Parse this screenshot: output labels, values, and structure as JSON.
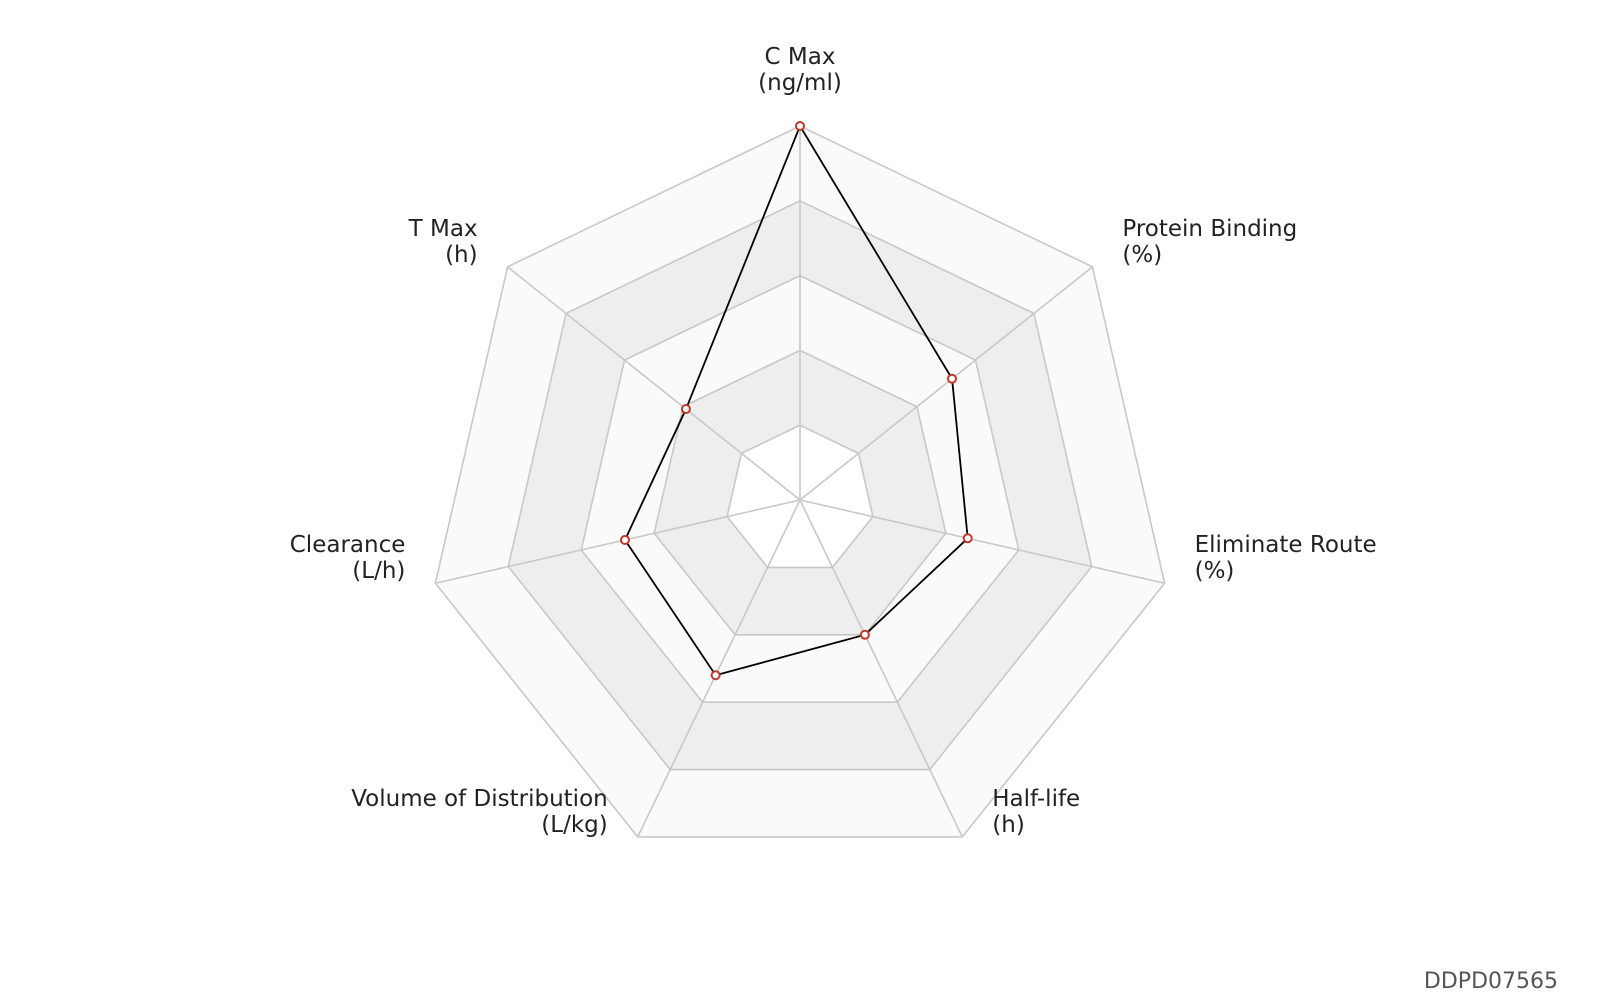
{
  "chart_data": {
    "type": "radar",
    "axes": [
      {
        "name": "C Max",
        "unit": "(ng/ml)"
      },
      {
        "name": "Protein Binding",
        "unit": "(%)"
      },
      {
        "name": "Eliminate Route",
        "unit": "(%)"
      },
      {
        "name": "Half-life",
        "unit": "(h)"
      },
      {
        "name": "Volume of Distribution",
        "unit": "(L/kg)"
      },
      {
        "name": "Clearance",
        "unit": "(L/h)"
      },
      {
        "name": "T Max",
        "unit": "(h)"
      }
    ],
    "series": [
      {
        "values": [
          1.0,
          0.52,
          0.46,
          0.4,
          0.52,
          0.48,
          0.39
        ]
      }
    ],
    "levels": 5,
    "range": [
      0,
      1
    ],
    "band_colors": [
      "#ffffff",
      "#eeeeee",
      "#fafafa",
      "#eeeeee",
      "#fafafa"
    ],
    "grid_color": "#c8c8c8",
    "line_color": "#000000",
    "marker_color": "#c0392b"
  },
  "watermark": "DDPD07565"
}
